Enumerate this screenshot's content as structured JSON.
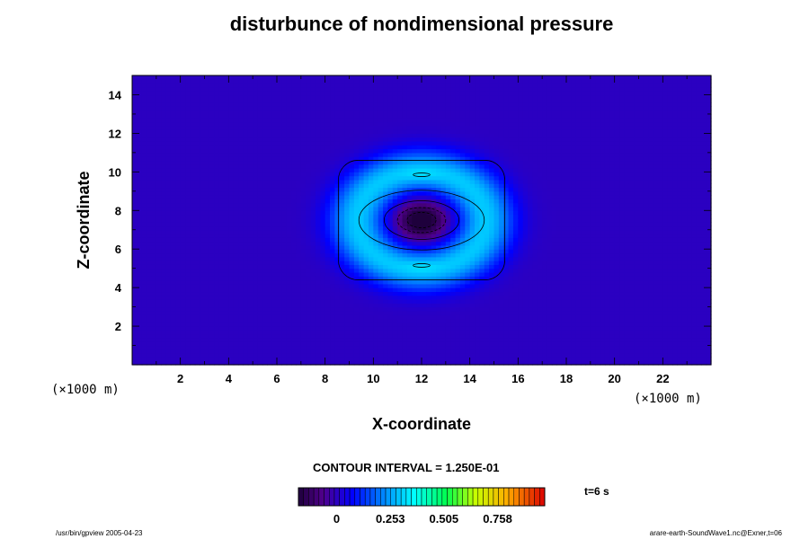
{
  "chart_data": {
    "type": "heatmap",
    "title": "disturbunce of nondimensional pressure",
    "xlabel": "X-coordinate",
    "ylabel": "Z-coordinate",
    "x_unit": "(×1000 m)",
    "y_unit": "(×1000 m)",
    "xlim": [
      0,
      24
    ],
    "ylim": [
      0,
      15
    ],
    "x_ticks": [
      "2",
      "4",
      "6",
      "8",
      "10",
      "12",
      "14",
      "16",
      "18",
      "20",
      "22"
    ],
    "y_ticks": [
      "2",
      "4",
      "6",
      "8",
      "10",
      "12",
      "14"
    ],
    "center": {
      "x": 12.0,
      "z": 7.5
    },
    "contour_interval": "CONTOUR INTERVAL = 1.250E-01",
    "colorbar_ticks": [
      "0",
      "0.253",
      "0.505",
      "0.758"
    ],
    "colorbar_range": [
      -0.18,
      0.98
    ],
    "time_label": "t=6 s",
    "contour_levels": [
      -0.125,
      0.0,
      0.125
    ],
    "background_value": 0.0
  },
  "footer": {
    "left": "/usr/bin/gpview 2005-04-23",
    "right": "arare-earth-SoundWave1.nc@Exner,t=06"
  }
}
